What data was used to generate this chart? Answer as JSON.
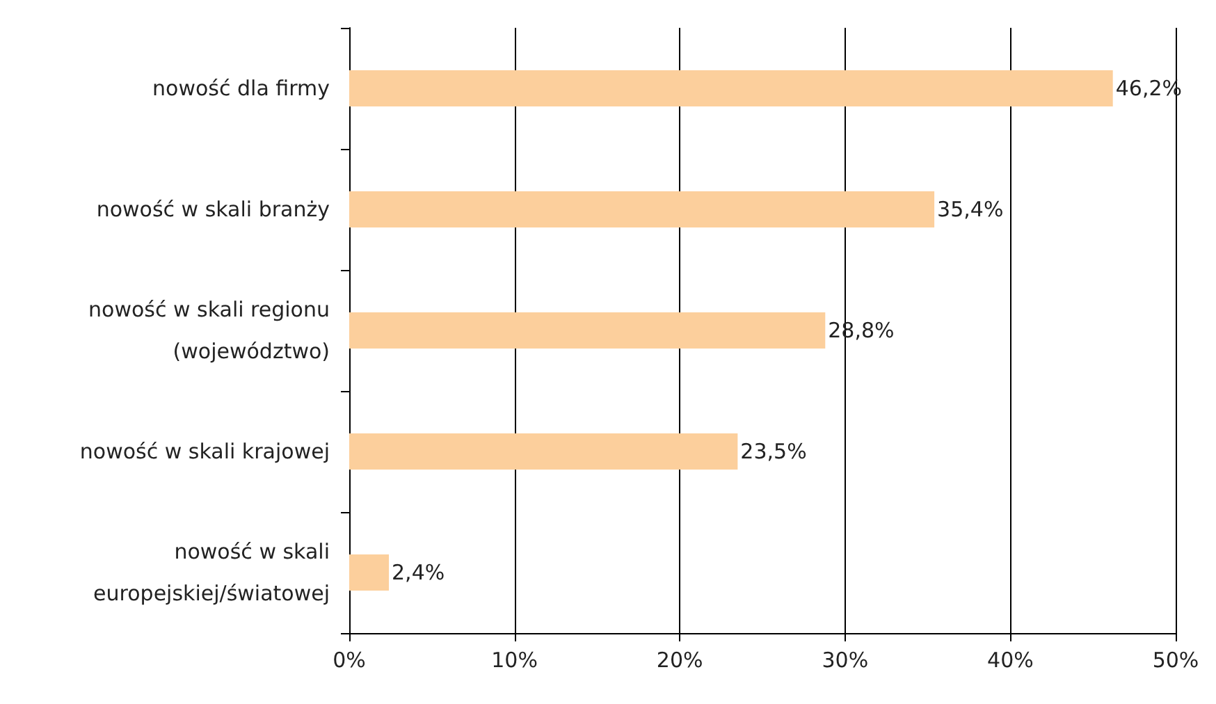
{
  "chart_data": {
    "type": "bar",
    "orientation": "horizontal",
    "categories": [
      "nowość dla firmy",
      "nowość w skali branży",
      "nowość w skali regionu\n(województwo)",
      "nowość w skali krajowej",
      "nowość w skali\neuropejskiej/światowej"
    ],
    "values": [
      46.2,
      35.4,
      28.8,
      23.5,
      2.4
    ],
    "color": "#fccf9c",
    "value_labels": [
      "46,2%",
      "35,4%",
      "28,8%",
      "23,5%",
      "2,4%"
    ],
    "xlim": [
      0,
      50
    ],
    "xticks": [
      {
        "value": 0,
        "label": "0%"
      },
      {
        "value": 10,
        "label": "10%"
      },
      {
        "value": 20,
        "label": "20%"
      },
      {
        "value": 30,
        "label": "30%"
      },
      {
        "value": 40,
        "label": "40%"
      },
      {
        "value": 50,
        "label": "50%"
      }
    ],
    "grid": "x"
  }
}
